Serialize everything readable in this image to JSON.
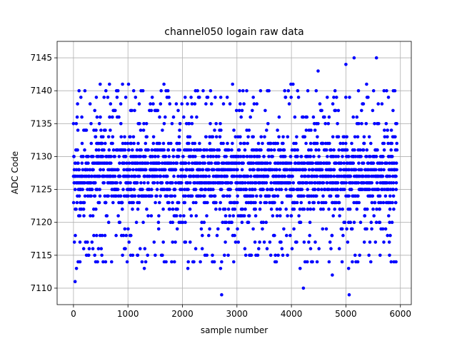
{
  "chart_data": {
    "type": "scatter",
    "title": "channel050 logain raw data",
    "xlabel": "sample number",
    "ylabel": "ADC Code",
    "xlim": [
      -300,
      6200
    ],
    "ylim": [
      7107.5,
      7147.5
    ],
    "xticks": [
      0,
      1000,
      2000,
      3000,
      4000,
      5000,
      6000
    ],
    "yticks": [
      7110,
      7115,
      7120,
      7125,
      7130,
      7135,
      7140,
      7145
    ],
    "grid": true,
    "marker_color": "#0000ff",
    "n_samples": 5940,
    "band": {
      "dense_low": 7121,
      "dense_high": 7134,
      "mean": 7127.5
    },
    "outliers": [
      {
        "x": 30,
        "y": 7111
      },
      {
        "x": 55,
        "y": 7113
      },
      {
        "x": 75,
        "y": 7138
      },
      {
        "x": 120,
        "y": 7114
      },
      {
        "x": 210,
        "y": 7140
      },
      {
        "x": 280,
        "y": 7115
      },
      {
        "x": 390,
        "y": 7115
      },
      {
        "x": 420,
        "y": 7139
      },
      {
        "x": 490,
        "y": 7141
      },
      {
        "x": 520,
        "y": 7115
      },
      {
        "x": 590,
        "y": 7114
      },
      {
        "x": 660,
        "y": 7141
      },
      {
        "x": 700,
        "y": 7114
      },
      {
        "x": 790,
        "y": 7140
      },
      {
        "x": 900,
        "y": 7141
      },
      {
        "x": 960,
        "y": 7139
      },
      {
        "x": 1010,
        "y": 7141
      },
      {
        "x": 1050,
        "y": 7115
      },
      {
        "x": 1180,
        "y": 7115
      },
      {
        "x": 1300,
        "y": 7113
      },
      {
        "x": 1500,
        "y": 7115
      },
      {
        "x": 1610,
        "y": 7140
      },
      {
        "x": 1660,
        "y": 7141
      },
      {
        "x": 1700,
        "y": 7114
      },
      {
        "x": 2050,
        "y": 7139
      },
      {
        "x": 2100,
        "y": 7113
      },
      {
        "x": 2240,
        "y": 7140
      },
      {
        "x": 2450,
        "y": 7139
      },
      {
        "x": 2550,
        "y": 7114
      },
      {
        "x": 2700,
        "y": 7113
      },
      {
        "x": 2720,
        "y": 7109
      },
      {
        "x": 2840,
        "y": 7115
      },
      {
        "x": 2920,
        "y": 7141
      },
      {
        "x": 3050,
        "y": 7140
      },
      {
        "x": 3250,
        "y": 7115
      },
      {
        "x": 3300,
        "y": 7139
      },
      {
        "x": 3560,
        "y": 7140
      },
      {
        "x": 3700,
        "y": 7114
      },
      {
        "x": 3890,
        "y": 7139
      },
      {
        "x": 3990,
        "y": 7141
      },
      {
        "x": 4030,
        "y": 7141
      },
      {
        "x": 4160,
        "y": 7113
      },
      {
        "x": 4220,
        "y": 7110
      },
      {
        "x": 4290,
        "y": 7114
      },
      {
        "x": 4490,
        "y": 7143
      },
      {
        "x": 4750,
        "y": 7112
      },
      {
        "x": 4800,
        "y": 7140
      },
      {
        "x": 5000,
        "y": 7144
      },
      {
        "x": 5050,
        "y": 7113
      },
      {
        "x": 5060,
        "y": 7109
      },
      {
        "x": 5150,
        "y": 7145
      },
      {
        "x": 5230,
        "y": 7140
      },
      {
        "x": 5380,
        "y": 7141
      },
      {
        "x": 5560,
        "y": 7145
      },
      {
        "x": 5700,
        "y": 7140
      },
      {
        "x": 5800,
        "y": 7115
      },
      {
        "x": 5870,
        "y": 7140
      },
      {
        "x": 5920,
        "y": 7114
      }
    ]
  }
}
